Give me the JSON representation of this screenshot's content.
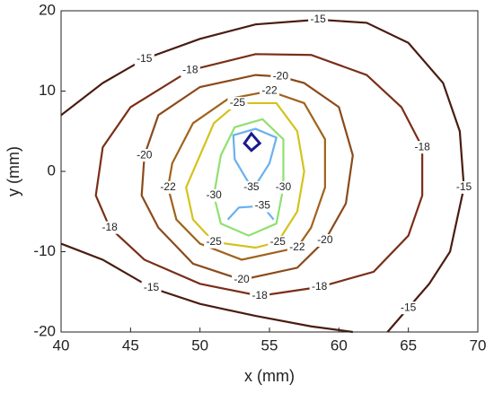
{
  "chart_data": {
    "type": "contour",
    "xlabel": "x (mm)",
    "ylabel": "y (mm)",
    "xlim": [
      40,
      70
    ],
    "ylim": [
      -20,
      20
    ],
    "xticks": [
      40,
      45,
      50,
      55,
      60,
      65,
      70
    ],
    "yticks": [
      -20,
      -10,
      0,
      10,
      20
    ],
    "contours": [
      {
        "level": -15,
        "color": "#4a1c10",
        "closed": false,
        "x": [
          40,
          43,
          46,
          50,
          54,
          58.5,
          62,
          65,
          67.5,
          68.7,
          69,
          68,
          66.5,
          65,
          63.5
        ],
        "y": [
          7,
          11,
          14,
          16.5,
          18.3,
          18.9,
          18.5,
          16,
          11,
          5,
          -2,
          -10,
          -14,
          -17,
          -20
        ]
      },
      {
        "level": -15,
        "color": "#4a1c10",
        "closed": false,
        "x": [
          40,
          43,
          46.5,
          50,
          54,
          58,
          61
        ],
        "y": [
          -9,
          -11,
          -14.5,
          -16.5,
          -18,
          -19.3,
          -20
        ]
      },
      {
        "level": -18,
        "color": "#7a2e18",
        "closed": true,
        "x": [
          42.5,
          43,
          45,
          49.3,
          54,
          58,
          62,
          64.5,
          66,
          66,
          65,
          62.5,
          58.6,
          54.3,
          50,
          46,
          43.5
        ],
        "y": [
          -3,
          3,
          8,
          12.6,
          14.6,
          14.5,
          12,
          8,
          3,
          -3,
          -8,
          -12.5,
          -14.4,
          -15.5,
          -14,
          -11,
          -7
        ]
      },
      {
        "level": -20,
        "color": "#8b4a1a",
        "closed": true,
        "x": [
          45.8,
          46,
          47,
          50,
          54,
          55.8,
          57.5,
          60,
          61,
          60.5,
          59,
          57,
          53,
          49.5,
          47
        ],
        "y": [
          -3,
          2,
          7,
          10.5,
          12,
          11.8,
          11,
          8,
          2,
          -4,
          -8.6,
          -12,
          -13.5,
          -11.5,
          -7
        ]
      },
      {
        "level": -22,
        "color": "#a0621c",
        "closed": true,
        "x": [
          47.7,
          48,
          49.5,
          52,
          55,
          57.5,
          59,
          59,
          58,
          57,
          53,
          50,
          48.3
        ],
        "y": [
          -2,
          1,
          6,
          9,
          10,
          8.5,
          4,
          -2,
          -7,
          -9.5,
          -11,
          -9,
          -6
        ]
      },
      {
        "level": -25,
        "color": "#d4c21c",
        "closed": true,
        "x": [
          49,
          50,
          51,
          52.7,
          55.5,
          57,
          57.5,
          57,
          55.6,
          54,
          51,
          49.5
        ],
        "y": [
          -2,
          2,
          6,
          8.5,
          8.5,
          5,
          0,
          -5,
          -8.8,
          -9.5,
          -8.8,
          -6
        ]
      },
      {
        "level": -30,
        "color": "#90e070",
        "closed": true,
        "x": [
          51,
          51.5,
          52.5,
          54.5,
          56,
          56,
          55.5,
          53.5,
          51.5
        ],
        "y": [
          -3,
          2,
          5.5,
          6.5,
          4,
          -2,
          -6.5,
          -8,
          -6.5
        ]
      },
      {
        "level": -35,
        "color": "#6ab0f0",
        "closed": true,
        "x": [
          53.7,
          52.5,
          52.4,
          54,
          55.5,
          55,
          53.9
        ],
        "y": [
          -2,
          1.5,
          4.5,
          5.3,
          4.2,
          1,
          -2
        ]
      },
      {
        "level": -35,
        "color": "#6ab0f0",
        "closed": false,
        "x": [
          52,
          52.8,
          54.5,
          55.3
        ],
        "y": [
          -6,
          -4.5,
          -4.3,
          -6
        ]
      },
      {
        "color": "#1a1a90",
        "closed": true,
        "x": [
          53.7,
          54.3,
          53.7,
          53.2
        ],
        "y": [
          4.7,
          3.5,
          2.6,
          3.5
        ]
      }
    ]
  }
}
